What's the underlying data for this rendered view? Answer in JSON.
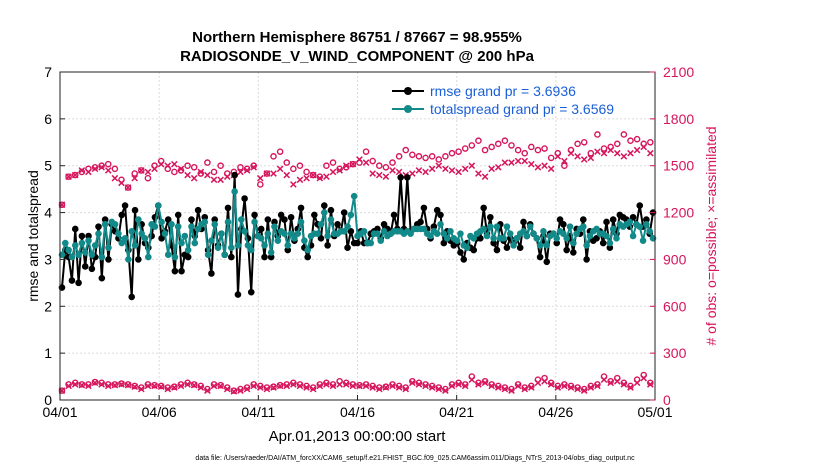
{
  "chart_data": {
    "type": "line",
    "title": [
      "Northern Hemisphere 86751 / 87667 = 98.955%",
      "RADIOSONDE_V_WIND_COMPONENT @ 200 hPa"
    ],
    "xlabel": "Apr.01,2013 00:00:00 start",
    "ylabel_left": "rmse and totalspread",
    "ylabel_right": "# of obs: o=possible; ×=assimilated",
    "footnote": "data file: /Users/raeder/DAI/ATM_forcXX/CAM6_setup/f.e21.FHIST_BGC.f09_025.CAM6assim.011/Diags_NTrS_2013-04/obs_diag_output.nc",
    "xlim": [
      0,
      30
    ],
    "ylim_left": [
      0,
      7
    ],
    "ylim_right": [
      0,
      2100
    ],
    "x_ticks": [
      0,
      5,
      10,
      15,
      20,
      25,
      30
    ],
    "x_tick_labels": [
      "04/01",
      "04/06",
      "04/11",
      "04/16",
      "04/21",
      "04/26",
      "05/01"
    ],
    "y_ticks_left": [
      "0",
      "1",
      "2",
      "3",
      "4",
      "5",
      "6",
      "7"
    ],
    "y_ticks_right": [
      "0",
      "300",
      "600",
      "900",
      "1200",
      "1500",
      "1800",
      "2100"
    ],
    "colors": {
      "rmse": "#000000",
      "spread": "#138a8a",
      "obs": "#d6155c",
      "legend_text": "#1a5fd6"
    },
    "legend": [
      "rmse grand pr = 3.6936",
      "totalspread grand pr = 3.6569"
    ],
    "series": [
      {
        "name": "rmse",
        "axis": "left",
        "values": [
          2.4,
          3.2,
          3.05,
          2.55,
          3.65,
          2.5,
          3.5,
          2.85,
          3.5,
          2.8,
          3.05,
          3.7,
          2.6,
          3.85,
          3.0,
          3.75,
          3.6,
          3.45,
          3.95,
          4.15,
          3.2,
          2.2,
          4.05,
          3.0,
          3.75,
          3.35,
          3.25,
          3.5,
          3.9,
          4.15,
          3.45,
          3.6,
          3.85,
          3.3,
          2.75,
          3.95,
          2.75,
          3.1,
          3.05,
          3.85,
          3.5,
          4.05,
          3.65,
          3.9,
          3.2,
          2.7,
          3.85,
          3.3,
          3.55,
          3.1,
          4.1,
          3.05,
          4.8,
          2.25,
          3.65,
          4.3,
          3.45,
          2.3,
          3.95,
          3.5,
          3.65,
          3.05,
          3.85,
          3.05,
          3.8,
          3.5,
          3.95,
          3.85,
          3.2,
          3.9,
          3.4,
          3.65,
          4.1,
          3.25,
          3.05,
          3.3,
          3.95,
          3.75,
          3.45,
          4.15,
          3.3,
          4.05,
          3.5,
          3.75,
          3.6,
          4.0,
          3.25,
          3.6,
          3.35,
          3.35,
          3.6,
          3.35,
          3.35,
          3.55,
          3.6,
          3.65,
          3.45,
          3.75,
          3.65,
          3.55,
          3.95,
          3.65,
          4.75,
          3.65,
          4.75,
          3.6,
          3.65,
          3.75,
          3.8,
          4.1,
          3.65,
          3.45,
          3.7,
          4.05,
          3.95,
          3.35,
          3.6,
          3.4,
          3.3,
          3.35,
          3.15,
          3.0,
          3.35,
          3.25,
          3.2,
          3.45,
          3.45,
          4.1,
          3.55,
          3.9,
          3.35,
          3.2,
          3.75,
          3.4,
          3.25,
          3.45,
          3.35,
          3.45,
          3.25,
          3.8,
          3.5,
          3.75,
          3.55,
          3.45,
          3.05,
          3.5,
          2.95,
          3.55,
          3.55,
          3.35,
          3.85,
          3.75,
          3.2,
          3.5,
          3.15,
          3.65,
          3.55,
          3.85,
          3.0,
          3.6,
          3.4,
          3.45,
          3.6,
          3.35,
          3.8,
          3.25,
          3.85,
          3.55,
          3.95,
          3.9,
          3.85,
          3.7,
          3.9,
          3.75,
          4.15,
          3.7,
          3.85,
          3.55,
          4.0
        ]
      },
      {
        "name": "totalspread",
        "axis": "left",
        "values": [
          3.1,
          3.35,
          3.2,
          3.05,
          3.3,
          3.1,
          3.35,
          3.15,
          3.4,
          3.1,
          3.3,
          3.55,
          3.05,
          3.75,
          3.25,
          3.8,
          3.75,
          3.55,
          3.35,
          3.45,
          3.0,
          3.6,
          3.3,
          3.85,
          3.55,
          3.45,
          3.05,
          3.75,
          3.7,
          4.15,
          3.8,
          3.55,
          3.1,
          3.75,
          3.05,
          3.7,
          3.35,
          3.5,
          3.2,
          3.7,
          3.35,
          3.65,
          3.75,
          3.8,
          3.1,
          3.4,
          3.75,
          3.25,
          3.55,
          3.1,
          3.8,
          3.25,
          4.45,
          3.3,
          3.85,
          3.6,
          3.3,
          3.2,
          3.8,
          3.5,
          3.45,
          3.3,
          3.55,
          3.15,
          3.7,
          3.4,
          3.6,
          3.55,
          3.3,
          3.55,
          3.45,
          3.55,
          3.8,
          3.4,
          3.2,
          3.5,
          3.55,
          3.55,
          3.75,
          4.0,
          3.5,
          3.85,
          3.55,
          3.55,
          3.6,
          3.6,
          3.7,
          3.95,
          4.35,
          3.5,
          3.55,
          3.6,
          3.35,
          3.35,
          3.55,
          3.55,
          3.4,
          3.6,
          3.5,
          3.55,
          3.6,
          3.6,
          3.6,
          3.55,
          3.6,
          3.55,
          3.65,
          3.65,
          3.65,
          3.65,
          3.55,
          3.5,
          3.6,
          3.55,
          3.75,
          3.55,
          3.45,
          3.6,
          3.45,
          3.4,
          3.55,
          3.3,
          3.25,
          3.5,
          3.45,
          3.55,
          3.6,
          3.65,
          3.5,
          3.7,
          3.45,
          3.7,
          3.45,
          3.45,
          3.7,
          3.55,
          3.3,
          3.45,
          3.55,
          3.6,
          3.5,
          3.7,
          3.55,
          3.45,
          3.3,
          3.6,
          3.3,
          3.5,
          3.55,
          3.45,
          3.6,
          3.55,
          3.45,
          3.7,
          3.35,
          3.55,
          3.65,
          3.7,
          3.3,
          3.5,
          3.6,
          3.65,
          3.55,
          3.55,
          3.5,
          3.35,
          3.65,
          3.45,
          3.75,
          3.7,
          3.75,
          3.8,
          3.5,
          3.75,
          3.7,
          3.4,
          3.75,
          3.6,
          3.45
        ]
      },
      {
        "name": "obs_possible",
        "axis": "right",
        "values": [
          1250,
          1430,
          1440,
          1460,
          1480,
          1490,
          1500,
          1510,
          1480,
          1410,
          1360,
          1450,
          1470,
          1420,
          1500,
          1530,
          1480,
          1460,
          1470,
          1500,
          1490,
          1450,
          1520,
          1460,
          1500,
          1450,
          1460,
          1490,
          1480,
          1500,
          1380,
          1450,
          1560,
          1590,
          1520,
          1480,
          1500,
          1460,
          1440,
          1430,
          1500,
          1520,
          1480,
          1490,
          1510,
          1520,
          1590,
          1530,
          1500,
          1490,
          1520,
          1560,
          1600,
          1570,
          1560,
          1550,
          1560,
          1540,
          1560,
          1580,
          1590,
          1610,
          1630,
          1660,
          1600,
          1620,
          1640,
          1660,
          1630,
          1600,
          1580,
          1620,
          1600,
          1610,
          1550,
          1580,
          1500,
          1600,
          1640,
          1650,
          1580,
          1700,
          1610,
          1620,
          1640,
          1700,
          1660,
          1670,
          1640,
          1650,
          1660
        ],
        "x_step": 0.3333
      },
      {
        "name": "obs_assimilated",
        "axis": "right",
        "values": [
          1250,
          1430,
          1440,
          1470,
          1460,
          1480,
          1490,
          1470,
          1420,
          1390,
          1360,
          1420,
          1470,
          1460,
          1480,
          1510,
          1500,
          1510,
          1480,
          1440,
          1420,
          1460,
          1440,
          1410,
          1410,
          1430,
          1440,
          1460,
          1470,
          1490,
          1420,
          1450,
          1450,
          1480,
          1440,
          1380,
          1410,
          1420,
          1440,
          1420,
          1430,
          1460,
          1470,
          1500,
          1510,
          1540,
          1520,
          1450,
          1440,
          1430,
          1470,
          1460,
          1440,
          1450,
          1470,
          1460,
          1480,
          1500,
          1480,
          1470,
          1460,
          1480,
          1500,
          1450,
          1430,
          1480,
          1490,
          1520,
          1520,
          1530,
          1530,
          1510,
          1490,
          1500,
          1480,
          1560,
          1530,
          1580,
          1560,
          1540,
          1550,
          1590,
          1580,
          1600,
          1580,
          1560,
          1580,
          1600,
          1620,
          1580,
          1570
        ],
        "x_step": 0.3333
      },
      {
        "name": "obs_possible_low",
        "axis": "right",
        "values": [
          60,
          100,
          110,
          100,
          100,
          115,
          110,
          100,
          100,
          105,
          100,
          90,
          80,
          100,
          95,
          90,
          80,
          85,
          100,
          110,
          100,
          90,
          70,
          100,
          95,
          80,
          60,
          70,
          80,
          100,
          90,
          80,
          85,
          95,
          100,
          110,
          100,
          90,
          80,
          100,
          110,
          100,
          120,
          110,
          100,
          95,
          100,
          90,
          80,
          85,
          100,
          90,
          80,
          120,
          110,
          100,
          90,
          80,
          70,
          100,
          110,
          100,
          150,
          110,
          120,
          100,
          90,
          80,
          70,
          100,
          80,
          90,
          130,
          140,
          110,
          90,
          100,
          90,
          80,
          70,
          90,
          100,
          150,
          120,
          140,
          110,
          90,
          130,
          160,
          110,
          120
        ],
        "x_step": 0.3333
      },
      {
        "name": "obs_assimilated_low",
        "axis": "right",
        "values": [
          60,
          90,
          100,
          95,
          90,
          110,
          100,
          90,
          95,
          100,
          95,
          85,
          70,
          90,
          90,
          85,
          70,
          80,
          90,
          100,
          95,
          80,
          60,
          90,
          90,
          70,
          55,
          60,
          70,
          90,
          80,
          70,
          80,
          90,
          90,
          100,
          90,
          80,
          70,
          90,
          100,
          90,
          100,
          100,
          90,
          90,
          90,
          80,
          70,
          80,
          90,
          80,
          70,
          110,
          100,
          90,
          80,
          70,
          60,
          90,
          100,
          90,
          130,
          100,
          110,
          90,
          80,
          70,
          60,
          90,
          70,
          80,
          110,
          120,
          100,
          80,
          90,
          80,
          70,
          60,
          80,
          90,
          130,
          110,
          120,
          100,
          80,
          110,
          140,
          100,
          110
        ],
        "x_step": 0.3333
      }
    ]
  }
}
